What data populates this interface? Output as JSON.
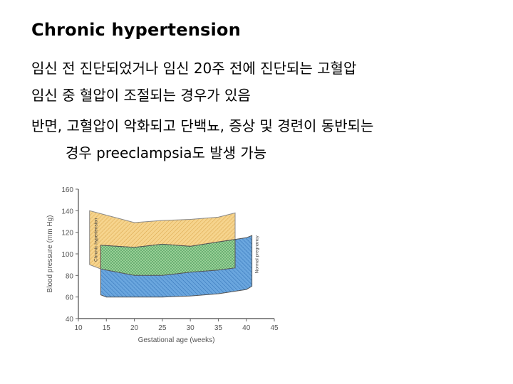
{
  "slide": {
    "title": "Chronic hypertension",
    "lines": [
      "임신 전 진단되었거나 임신 20주 전에 진단되는 고혈압",
      "임신 중 혈압이 조절되는 경우가 있음",
      "반면, 고혈압이 악화되고 단백뇨, 증상 및 경련이 동반되는",
      "경우 preeclampsia도 발생 가능"
    ]
  },
  "chart_data": {
    "type": "area",
    "xlabel": "Gestational age (weeks)",
    "ylabel": "Blood pressure (mm Hg)",
    "xlim": [
      10,
      45
    ],
    "ylim": [
      40,
      160
    ],
    "xticks": [
      10,
      15,
      20,
      25,
      30,
      35,
      40,
      45
    ],
    "yticks": [
      40,
      60,
      80,
      100,
      120,
      140,
      160
    ],
    "grid": false,
    "series": [
      {
        "name": "Chronic hypertension",
        "color": "#f2c97a",
        "upper": [
          [
            12,
            140
          ],
          [
            20,
            129
          ],
          [
            25,
            131
          ],
          [
            30,
            132
          ],
          [
            35,
            134
          ],
          [
            38,
            138
          ]
        ],
        "lower": [
          [
            12,
            90
          ],
          [
            14,
            86
          ],
          [
            20,
            80
          ],
          [
            25,
            80
          ],
          [
            30,
            83
          ],
          [
            35,
            85
          ],
          [
            38,
            87
          ]
        ]
      },
      {
        "name": "Normal pregnancy",
        "color": "#5a9ad8",
        "upper": [
          [
            14,
            108
          ],
          [
            20,
            106
          ],
          [
            25,
            109
          ],
          [
            30,
            107
          ],
          [
            35,
            111
          ],
          [
            40,
            115
          ],
          [
            41,
            117
          ]
        ],
        "lower": [
          [
            14,
            62
          ],
          [
            15,
            60
          ],
          [
            20,
            60
          ],
          [
            25,
            60
          ],
          [
            30,
            61
          ],
          [
            35,
            63
          ],
          [
            40,
            67
          ],
          [
            41,
            70
          ]
        ]
      }
    ]
  }
}
